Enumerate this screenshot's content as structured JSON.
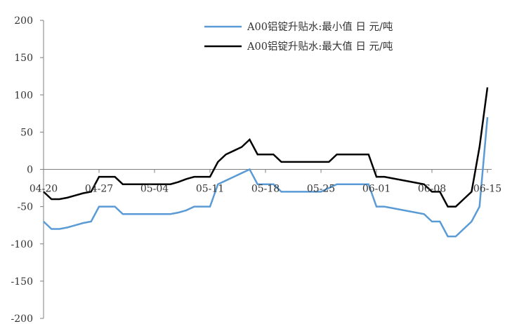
{
  "chart_data": {
    "type": "line",
    "title": "",
    "xlabel": "",
    "ylabel": "",
    "ylim": [
      -200,
      200
    ],
    "yticks": [
      -200,
      -150,
      -100,
      -50,
      0,
      50,
      100,
      150,
      200
    ],
    "ytick_labels": [
      "-200",
      "-150",
      "-100",
      "-50",
      "0",
      "50",
      "100",
      "150",
      "200"
    ],
    "x": [
      "04-20",
      "04-21",
      "04-22",
      "04-23",
      "04-24",
      "04-25",
      "04-26",
      "04-27",
      "04-28",
      "04-29",
      "04-30",
      "05-01",
      "05-02",
      "05-03",
      "05-04",
      "05-05",
      "05-06",
      "05-07",
      "05-08",
      "05-09",
      "05-10",
      "05-11",
      "05-12",
      "05-13",
      "05-14",
      "05-15",
      "05-16",
      "05-17",
      "05-18",
      "05-19",
      "05-20",
      "05-21",
      "05-22",
      "05-23",
      "05-24",
      "05-25",
      "05-26",
      "05-27",
      "05-28",
      "05-29",
      "05-30",
      "05-31",
      "06-01",
      "06-02",
      "06-03",
      "06-04",
      "06-05",
      "06-06",
      "06-07",
      "06-08",
      "06-09",
      "06-10",
      "06-11",
      "06-12",
      "06-13",
      "06-14",
      "06-15"
    ],
    "xtick_labels": [
      "04-20",
      "04-27",
      "05-04",
      "05-11",
      "05-18",
      "05-25",
      "06-01",
      "06-08",
      "06-15"
    ],
    "grid": false,
    "legend_position": "top-right",
    "series": [
      {
        "name": "A00铝锭升贴水:最小值 日 元/吨",
        "color": "#5b9bd5",
        "values": [
          -70,
          -80,
          -80,
          -78,
          -75,
          -72,
          -70,
          -50,
          -50,
          -50,
          -60,
          -60,
          -60,
          -60,
          -60,
          -60,
          -60,
          -58,
          -55,
          -50,
          -50,
          -50,
          -20,
          -15,
          -10,
          -5,
          0,
          -20,
          -20,
          -20,
          -30,
          -30,
          -30,
          -30,
          -30,
          -30,
          -25,
          -20,
          -20,
          -20,
          -20,
          -20,
          -50,
          -50,
          -52,
          -54,
          -56,
          -58,
          -60,
          -70,
          -70,
          -90,
          -90,
          -80,
          -70,
          -50,
          70
        ]
      },
      {
        "name": "A00铝锭升贴水:最大值 日 元/吨",
        "color": "#000000",
        "values": [
          -30,
          -40,
          -40,
          -38,
          -35,
          -32,
          -30,
          -10,
          -10,
          -10,
          -20,
          -20,
          -20,
          -20,
          -20,
          -20,
          -20,
          -17,
          -13,
          -10,
          -10,
          -10,
          10,
          20,
          25,
          30,
          40,
          20,
          20,
          20,
          10,
          10,
          10,
          10,
          10,
          10,
          10,
          20,
          20,
          20,
          20,
          20,
          -10,
          -10,
          -12,
          -14,
          -16,
          -18,
          -20,
          -30,
          -30,
          -50,
          -50,
          -40,
          -30,
          30,
          110
        ]
      }
    ]
  }
}
